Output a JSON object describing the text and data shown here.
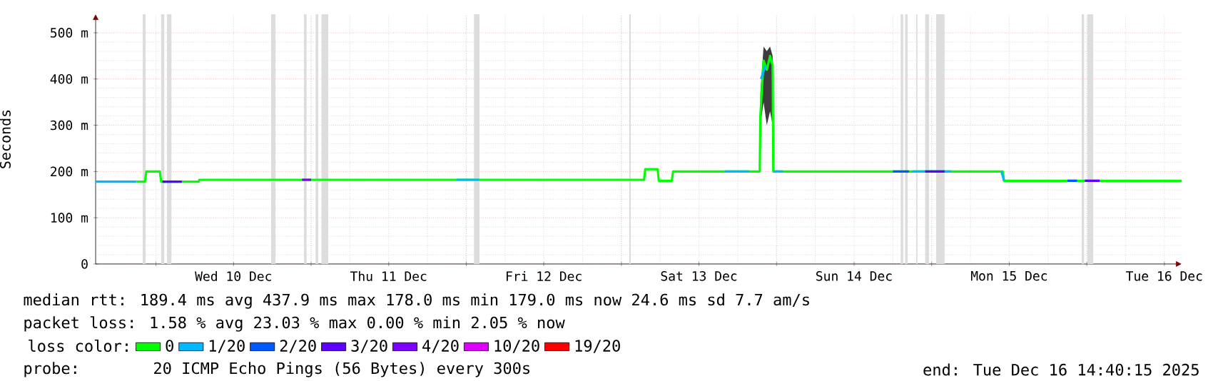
{
  "chart_data": {
    "type": "line",
    "ylabel": "Seconds",
    "xlim": [
      "2025-12-09T14:40",
      "2025-12-16T14:40"
    ],
    "xticks": [
      {
        "value": "2025-12-10T00:00",
        "label": null
      },
      {
        "value": "2025-12-10T12:00",
        "label": "Wed 10 Dec"
      },
      {
        "value": "2025-12-11T00:00",
        "label": null
      },
      {
        "value": "2025-12-11T12:00",
        "label": "Thu 11 Dec"
      },
      {
        "value": "2025-12-12T00:00",
        "label": null
      },
      {
        "value": "2025-12-12T12:00",
        "label": "Fri 12 Dec"
      },
      {
        "value": "2025-12-13T00:00",
        "label": null
      },
      {
        "value": "2025-12-13T12:00",
        "label": "Sat 13 Dec"
      },
      {
        "value": "2025-12-14T00:00",
        "label": null
      },
      {
        "value": "2025-12-14T12:00",
        "label": "Sun 14 Dec"
      },
      {
        "value": "2025-12-15T00:00",
        "label": null
      },
      {
        "value": "2025-12-15T12:00",
        "label": "Mon 15 Dec"
      },
      {
        "value": "2025-12-16T00:00",
        "label": null
      },
      {
        "value": "2025-12-16T12:00",
        "label": "Tue 16 Dec"
      }
    ],
    "ylim": [
      0,
      540
    ],
    "yticks": [
      0,
      {
        "value": 100,
        "label": "100 m"
      },
      {
        "value": 200,
        "label": "200 m"
      },
      {
        "value": 300,
        "label": "300 m"
      },
      {
        "value": 400,
        "label": "400 m"
      },
      {
        "value": 500,
        "label": "500 m"
      }
    ],
    "grid": true,
    "legend": "bottom",
    "legend_title": "loss color:",
    "series": [
      {
        "name": "0",
        "color": "#00ff00",
        "x": [
          "2025-12-09T21:00",
          "2025-12-09T22:18",
          "2025-12-09T22:30",
          "2025-12-10T00:36",
          "2025-12-10T00:48",
          "2025-12-10T06:36",
          "2025-12-10T06:42",
          "2025-12-13T03:30",
          "2025-12-13T03:42",
          "2025-12-13T05:36",
          "2025-12-13T05:48",
          "2025-12-13T07:48",
          "2025-12-13T08:00",
          "2025-12-13T21:24",
          "2025-12-13T21:30",
          "2025-12-13T22:00",
          "2025-12-13T22:30",
          "2025-12-13T23:00",
          "2025-12-13T23:24",
          "2025-12-13T23:30",
          "2025-12-15T11:00",
          "2025-12-15T11:12",
          "2025-12-16T14:40"
        ],
        "values": [
          178,
          178,
          200,
          200,
          178,
          178,
          182,
          182,
          205,
          205,
          180,
          180,
          200,
          200,
          320,
          440,
          420,
          450,
          430,
          200,
          200,
          180,
          180
        ],
        "lower": [
          null,
          null,
          null,
          null,
          null,
          null,
          null,
          null,
          null,
          null,
          null,
          null,
          null,
          null,
          300,
          350,
          300,
          330,
          300,
          null,
          null,
          null,
          null
        ],
        "upper": [
          null,
          null,
          null,
          null,
          null,
          null,
          null,
          null,
          null,
          null,
          null,
          null,
          null,
          null,
          370,
          470,
          460,
          470,
          450,
          null,
          null,
          null,
          null
        ]
      },
      {
        "name": "1/20",
        "color": "#00b8ff",
        "x": [
          "2025-12-09T14:40",
          "2025-12-09T21:00",
          "2025-12-09T21:06",
          "2025-12-11T22:30",
          "2025-12-12T02:00",
          "2025-12-12T02:06",
          "2025-12-13T16:00",
          "2025-12-13T19:48",
          "2025-12-13T19:54",
          "2025-12-13T21:36",
          "2025-12-13T22:18",
          "2025-12-13T22:24",
          "2025-12-13T23:30",
          "2025-12-14T01:00",
          "2025-12-14T01:06",
          "2025-12-14T21:00",
          "2025-12-15T03:00",
          "2025-12-15T03:06",
          "2025-12-15T10:48",
          "2025-12-15T11:12"
        ],
        "values": [
          178,
          178,
          null,
          182,
          182,
          null,
          200,
          200,
          null,
          400,
          430,
          null,
          200,
          200,
          null,
          200,
          200,
          null,
          200,
          180
        ]
      },
      {
        "name": "2/20",
        "color": "#0059ff",
        "x": [
          "2025-12-14T18:00",
          "2025-12-14T20:30",
          "2025-12-14T20:36",
          "2025-12-15T21:00",
          "2025-12-15T22:30"
        ],
        "values": [
          200,
          200,
          null,
          180,
          180
        ]
      },
      {
        "name": "3/20",
        "color": "#5e00ff",
        "x": [
          "2025-12-10T01:00",
          "2025-12-10T04:00",
          "2025-12-10T04:06",
          "2025-12-14T23:00",
          "2025-12-15T02:00",
          "2025-12-15T02:06",
          "2025-12-15T23:42",
          "2025-12-16T02:00"
        ],
        "values": [
          178,
          178,
          null,
          200,
          200,
          null,
          180,
          180
        ]
      },
      {
        "name": "4/20",
        "color": "#7e00ff",
        "x": [
          "2025-12-10T22:36",
          "2025-12-11T00:00"
        ],
        "values": [
          182,
          182
        ]
      },
      {
        "name": "10/20",
        "color": "#dd00ff"
      },
      {
        "name": "19/20",
        "color": "#ff0000"
      }
    ],
    "bands": [
      {
        "axis": "x",
        "from": "2025-12-09T21:57",
        "to": "2025-12-09T22:24",
        "color": "#dddddd"
      },
      {
        "axis": "x",
        "from": "2025-12-10T00:48",
        "to": "2025-12-10T01:18",
        "color": "#dddddd"
      },
      {
        "axis": "x",
        "from": "2025-12-10T01:42",
        "to": "2025-12-10T02:24",
        "color": "#dddddd"
      },
      {
        "axis": "x",
        "from": "2025-12-10T17:48",
        "to": "2025-12-10T18:30",
        "color": "#dddddd"
      },
      {
        "axis": "x",
        "from": "2025-12-10T22:54",
        "to": "2025-12-10T23:18",
        "color": "#dddddd"
      },
      {
        "axis": "x",
        "from": "2025-12-11T00:42",
        "to": "2025-12-11T01:06",
        "color": "#dddddd"
      },
      {
        "axis": "x",
        "from": "2025-12-11T01:36",
        "to": "2025-12-11T02:39",
        "color": "#dddddd"
      },
      {
        "axis": "x",
        "from": "2025-12-12T01:12",
        "to": "2025-12-12T02:03",
        "color": "#dddddd"
      },
      {
        "axis": "x",
        "from": "2025-12-13T01:12",
        "to": "2025-12-13T01:27",
        "color": "#dddddd"
      },
      {
        "axis": "x",
        "from": "2025-12-14T19:12",
        "to": "2025-12-14T19:36",
        "color": "#dddddd"
      },
      {
        "axis": "x",
        "from": "2025-12-14T19:54",
        "to": "2025-12-14T20:18",
        "color": "#dddddd"
      },
      {
        "axis": "x",
        "from": "2025-12-14T21:36",
        "to": "2025-12-14T21:48",
        "color": "#dddddd"
      },
      {
        "axis": "x",
        "from": "2025-12-14T23:00",
        "to": "2025-12-14T23:36",
        "color": "#dddddd"
      },
      {
        "axis": "x",
        "from": "2025-12-15T00:42",
        "to": "2025-12-15T02:00",
        "color": "#dddddd"
      },
      {
        "axis": "x",
        "from": "2025-12-15T23:12",
        "to": "2025-12-15T23:36",
        "color": "#dddddd"
      },
      {
        "axis": "x",
        "from": "2025-12-16T00:06",
        "to": "2025-12-16T01:00",
        "color": "#dddddd"
      }
    ],
    "annotations": [
      "median rtt:  189.4 ms avg  437.9 ms max  178.0 ms min  179.0 ms now  24.6 ms sd  7.7   am/s",
      "packet loss: 1.58 % avg  23.03 % max  0.00 % min  2.05 % now",
      "probe:",
      "20 ICMP Echo Pings (56 Bytes) every 300s",
      "end: Tue Dec 16 14:40:15 2025"
    ]
  }
}
